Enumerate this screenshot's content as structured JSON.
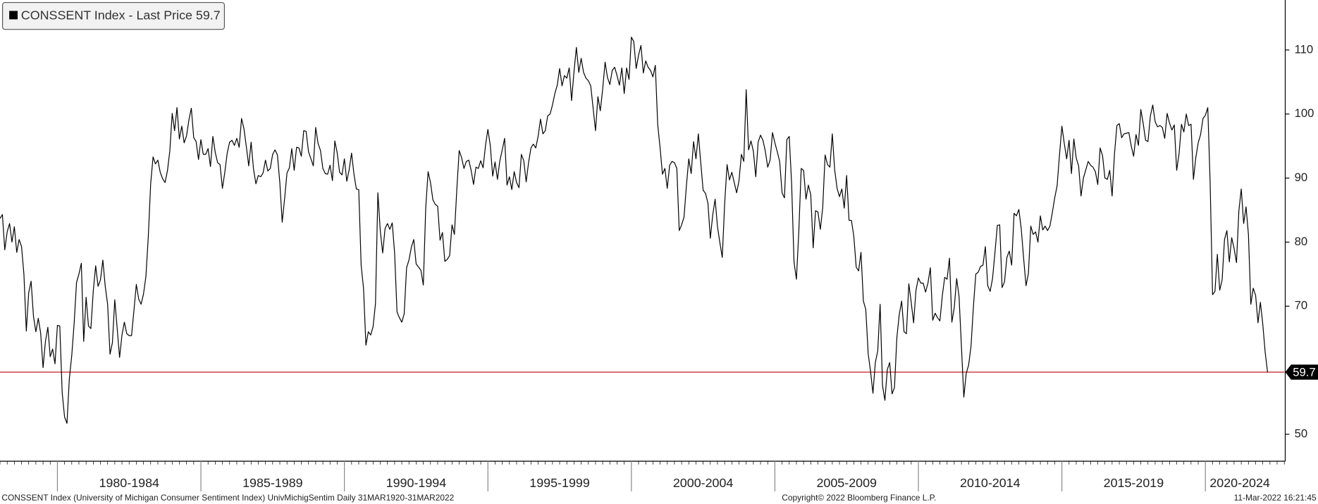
{
  "chart_data": {
    "type": "line",
    "legend": "CONSSENT Index - Last Price 59.7",
    "color": "#000000",
    "xlim": [
      1978,
      2022.1667
    ],
    "xticks": [
      1980,
      1985,
      1990,
      1995,
      2000,
      2005,
      2010,
      2015,
      2020
    ],
    "period_labels": [
      "1980-1984",
      "1985-1989",
      "1990-1994",
      "1995-1999",
      "2000-2004",
      "2005-2009",
      "2010-2014",
      "2015-2019",
      "2020-2024"
    ],
    "ylim": [
      45.8,
      117.8
    ],
    "yticks": [
      50,
      70,
      80,
      90,
      100,
      110
    ],
    "last_price": 59.7,
    "last_price_color": "#c00000",
    "footer_left": "CONSSENT Index (University of Michigan Consumer Sentiment Index) UnivMichigSentim  Daily 31MAR1920-31MAR2022",
    "footer_center": "Copyright© 2022 Bloomberg Finance L.P.",
    "footer_right": "11-Mar-2022 16:21:45",
    "values": [
      83.7,
      84.3,
      78.8,
      81.6,
      82.9,
      80.0,
      82.4,
      78.4,
      80.4,
      79.3,
      75.0,
      66.1,
      72.1,
      73.9,
      68.4,
      66.0,
      68.1,
      65.8,
      60.4,
      64.5,
      66.7,
      62.1,
      63.3,
      61.0,
      67.0,
      66.9,
      56.5,
      52.7,
      51.7,
      58.7,
      62.3,
      67.3,
      73.7,
      75.0,
      76.7,
      64.5,
      71.4,
      66.9,
      66.5,
      72.4,
      76.3,
      73.1,
      74.1,
      77.2,
      73.1,
      70.3,
      62.5,
      64.3,
      71.0,
      66.5,
      62.0,
      65.5,
      67.5,
      65.7,
      65.4,
      65.4,
      69.3,
      73.4,
      71.1,
      70.3,
      71.9,
      74.6,
      80.8,
      89.1,
      93.3,
      92.2,
      92.8,
      90.9,
      89.9,
      89.3,
      91.1,
      94.2,
      100.1,
      97.4,
      101.0,
      96.1,
      98.1,
      95.5,
      96.6,
      99.1,
      100.9,
      96.3,
      95.7,
      92.9,
      96.0,
      93.7,
      93.7,
      94.6,
      91.8,
      96.5,
      94.0,
      92.4,
      92.1,
      88.4,
      90.9,
      93.9,
      95.6,
      95.9,
      95.1,
      96.2,
      94.8,
      99.3,
      97.7,
      94.9,
      91.9,
      95.6,
      91.4,
      89.1,
      90.4,
      90.2,
      90.8,
      92.8,
      91.1,
      91.5,
      93.7,
      94.4,
      93.6,
      89.3,
      83.1,
      86.8,
      90.8,
      91.6,
      94.6,
      91.2,
      94.8,
      94.7,
      93.4,
      97.4,
      97.3,
      94.1,
      93.0,
      91.9,
      97.9,
      95.4,
      94.3,
      91.5,
      90.7,
      90.6,
      92.0,
      89.6,
      95.8,
      93.9,
      90.9,
      90.5,
      93.0,
      89.5,
      91.3,
      93.9,
      90.6,
      88.3,
      88.2,
      76.4,
      72.8,
      63.9,
      66.0,
      65.5,
      66.8,
      70.4,
      87.7,
      81.8,
      78.3,
      82.1,
      82.9,
      82.0,
      83.0,
      78.3,
      69.1,
      68.2,
      67.5,
      68.8,
      76.0,
      77.2,
      79.2,
      80.4,
      76.6,
      76.1,
      75.6,
      73.3,
      85.3,
      91.0,
      89.3,
      86.6,
      85.9,
      85.6,
      80.3,
      81.5,
      77.0,
      77.3,
      77.9,
      82.7,
      81.2,
      88.2,
      94.3,
      93.2,
      91.5,
      92.6,
      92.8,
      91.2,
      89.0,
      91.7,
      91.5,
      92.7,
      91.6,
      95.1,
      97.6,
      95.1,
      90.3,
      92.5,
      89.8,
      92.7,
      94.4,
      96.2,
      88.9,
      90.2,
      88.2,
      91.0,
      89.3,
      88.5,
      93.7,
      92.7,
      89.4,
      92.4,
      94.7,
      95.3,
      94.7,
      96.5,
      99.2,
      96.9,
      97.4,
      99.7,
      100.0,
      101.4,
      103.2,
      104.5,
      107.1,
      104.4,
      106.0,
      105.6,
      107.2,
      102.1,
      106.6,
      110.4,
      106.5,
      108.7,
      106.5,
      105.6,
      105.2,
      104.4,
      100.9,
      97.4,
      102.7,
      100.5,
      103.9,
      108.1,
      105.7,
      104.6,
      106.8,
      107.3,
      106.0,
      104.5,
      107.2,
      103.2,
      107.2,
      105.4,
      112.0,
      111.3,
      107.1,
      109.2,
      110.7,
      106.4,
      108.3,
      107.3,
      106.8,
      105.8,
      107.6,
      98.4,
      94.7,
      90.6,
      91.5,
      88.4,
      92.0,
      92.6,
      92.4,
      91.5,
      81.8,
      82.7,
      83.9,
      88.8,
      93.0,
      90.7,
      95.7,
      93.0,
      96.9,
      92.4,
      88.1,
      87.6,
      86.1,
      80.6,
      84.2,
      86.7,
      82.4,
      79.9,
      77.6,
      86.0,
      92.1,
      89.7,
      90.9,
      89.3,
      87.7,
      89.6,
      93.7,
      92.6,
      103.8,
      94.4,
      95.8,
      94.2,
      90.2,
      95.6,
      96.7,
      95.9,
      94.2,
      91.7,
      92.8,
      97.1,
      95.5,
      94.1,
      92.6,
      87.7,
      86.9,
      96.0,
      96.5,
      89.1,
      76.9,
      74.2,
      81.6,
      91.5,
      91.2,
      86.7,
      88.9,
      87.4,
      79.1,
      84.9,
      84.7,
      82.0,
      85.4,
      93.6,
      92.1,
      91.7,
      96.9,
      91.3,
      88.4,
      87.1,
      88.3,
      85.3,
      90.4,
      83.4,
      83.4,
      80.9,
      76.1,
      75.5,
      78.4,
      70.8,
      69.5,
      62.6,
      59.8,
      56.4,
      61.2,
      63.0,
      70.3,
      57.6,
      55.3,
      60.1,
      61.2,
      56.3,
      57.3,
      65.1,
      68.7,
      70.8,
      66.0,
      65.7,
      73.5,
      70.6,
      67.4,
      72.5,
      74.4,
      73.6,
      73.6,
      72.2,
      73.6,
      76.0,
      67.8,
      68.9,
      68.2,
      67.7,
      71.6,
      74.5,
      74.2,
      77.5,
      67.5,
      69.8,
      74.3,
      71.5,
      63.7,
      55.8,
      59.5,
      60.8,
      63.7,
      69.9,
      75.0,
      75.3,
      76.2,
      76.4,
      79.3,
      73.2,
      72.3,
      74.3,
      78.3,
      82.6,
      82.7,
      72.9,
      73.8,
      77.6,
      78.6,
      76.4,
      84.5,
      84.1,
      85.1,
      82.1,
      77.5,
      73.2,
      75.1,
      82.5,
      81.2,
      81.6,
      80.0,
      84.1,
      81.9,
      82.5,
      81.8,
      82.5,
      84.6,
      86.9,
      88.8,
      93.6,
      98.1,
      95.4,
      93.0,
      95.9,
      90.7,
      96.1,
      93.1,
      91.9,
      87.2,
      90.0,
      91.3,
      92.6,
      92.0,
      91.7,
      91.0,
      89.0,
      94.7,
      93.5,
      90.0,
      89.8,
      91.2,
      87.2,
      93.8,
      98.2,
      98.5,
      96.3,
      96.9,
      97.0,
      97.1,
      95.0,
      93.4,
      96.8,
      95.1,
      100.7,
      98.5,
      95.9,
      95.7,
      99.7,
      101.4,
      98.8,
      98.0,
      98.2,
      97.9,
      96.2,
      100.1,
      98.6,
      97.5,
      98.3,
      91.2,
      93.8,
      98.4,
      97.2,
      100.0,
      98.2,
      98.4,
      89.8,
      93.2,
      95.5,
      96.8,
      99.3,
      99.8,
      101.0,
      89.1,
      71.8,
      72.3,
      78.1,
      72.5,
      74.1,
      80.4,
      81.8,
      76.9,
      80.7,
      79.0,
      76.8,
      84.9,
      88.3,
      82.9,
      85.5,
      81.2,
      70.3,
      72.8,
      71.7,
      67.4,
      70.6,
      67.2,
      62.8,
      59.7
    ]
  }
}
